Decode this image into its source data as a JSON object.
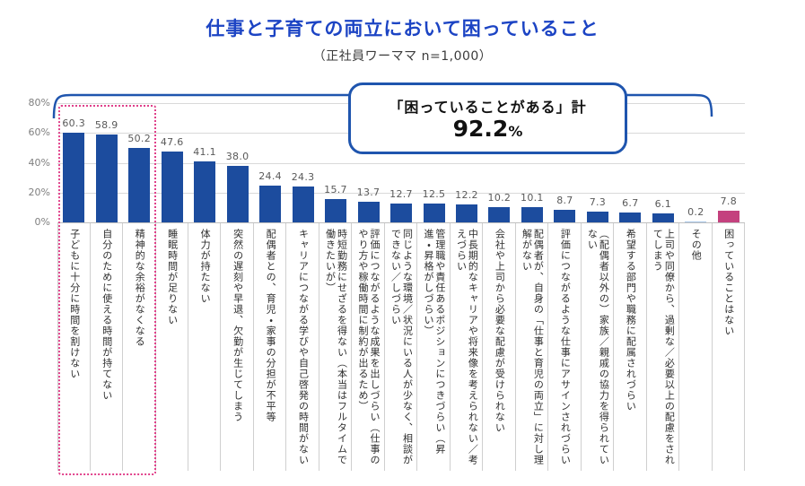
{
  "page": {
    "title": "仕事と子育ての両立において困っていること",
    "subtitle": "（正社員ワーママ n=1,000）"
  },
  "callout": {
    "label": "「困っていることがある」計",
    "value": "92.2",
    "unit": "%"
  },
  "colors": {
    "title_blue": "#1c44c4",
    "accent_blue": "#1f55ae",
    "bar_default": "#1c4c9e",
    "bar_none": "#c4417e",
    "bar_other": "#a9c7e9",
    "dotted_pink": "#e0408a",
    "gridline": "#d9d9d9",
    "value_text": "#595959",
    "tick_text": "#7f7f7f"
  },
  "chart_data": {
    "type": "bar",
    "title": "仕事と子育ての両立において困っていること",
    "subtitle": "（正社員ワーママ n=1,000）",
    "xlabel": "",
    "ylabel": "",
    "ylim": [
      0,
      80
    ],
    "yticks": [
      {
        "value": 0,
        "label": "0%"
      },
      {
        "value": 20,
        "label": "20%"
      },
      {
        "value": 40,
        "label": "40%"
      },
      {
        "value": 60,
        "label": "60%"
      },
      {
        "value": 80,
        "label": "80%"
      }
    ],
    "grid": true,
    "legend": "none",
    "annotations": {
      "total_note": "「困っていることがある」計 92.2%",
      "highlight_top3": true
    },
    "items": [
      {
        "label": "子どもに十分に時間を割けない",
        "value": 60.3,
        "value_text": "60.3"
      },
      {
        "label": "自分のために使える時間が持てない",
        "value": 58.9,
        "value_text": "58.9"
      },
      {
        "label": "精神的な余裕がなくなる",
        "value": 50.2,
        "value_text": "50.2"
      },
      {
        "label": "睡眠時間が足りない",
        "value": 47.6,
        "value_text": "47.6"
      },
      {
        "label": "体力が持たない",
        "value": 41.1,
        "value_text": "41.1"
      },
      {
        "label": "突然の遅刻や早退、欠勤が生じてしまう",
        "value": 38.0,
        "value_text": "38.0"
      },
      {
        "label": "配偶者との、育児・家事の分担が不平等",
        "value": 24.4,
        "value_text": "24.4"
      },
      {
        "label": "キャリアにつながる学びや自己啓発の時間がない",
        "value": 24.3,
        "value_text": "24.3"
      },
      {
        "label": "時短勤務にせざるを得ない（本当はフルタイムで働きたいが）",
        "value": 15.7,
        "value_text": "15.7"
      },
      {
        "label": "評価につながるような成果を出しづらい（仕事のやり方や稼働時間に制約が出るため）",
        "value": 13.7,
        "value_text": "13.7"
      },
      {
        "label": "同じような環境／状況にいる人が少なく、相談ができない／しづらい",
        "value": 12.7,
        "value_text": "12.7"
      },
      {
        "label": "管理職や責任あるポジションにつきづらい（昇進・昇格がしづらい）",
        "value": 12.5,
        "value_text": "12.5"
      },
      {
        "label": "中長期的なキャリアや将来像を考えられない／考えづらい",
        "value": 12.2,
        "value_text": "12.2"
      },
      {
        "label": "会社や上司から必要な配慮が受けられない",
        "value": 10.2,
        "value_text": "10.2"
      },
      {
        "label": "配偶者が、自身の「仕事と育児の両立」に対し理解がない",
        "value": 10.1,
        "value_text": "10.1"
      },
      {
        "label": "評価につながるような仕事にアサインされづらい",
        "value": 8.7,
        "value_text": "8.7"
      },
      {
        "label": "（配偶者以外の）家族／親戚の協力を得られていない",
        "value": 7.3,
        "value_text": "7.3"
      },
      {
        "label": "希望する部門や職務に配属されづらい",
        "value": 6.7,
        "value_text": "6.7"
      },
      {
        "label": "上司や同僚から、過剰な／必要以上の配慮をされてしまう",
        "value": 6.1,
        "value_text": "6.1"
      },
      {
        "label": "その他",
        "value": 0.2,
        "value_text": "0.2",
        "color_key": "bar_other"
      },
      {
        "label": "困っていることはない",
        "value": 7.8,
        "value_text": "7.8",
        "color_key": "bar_none"
      }
    ]
  }
}
